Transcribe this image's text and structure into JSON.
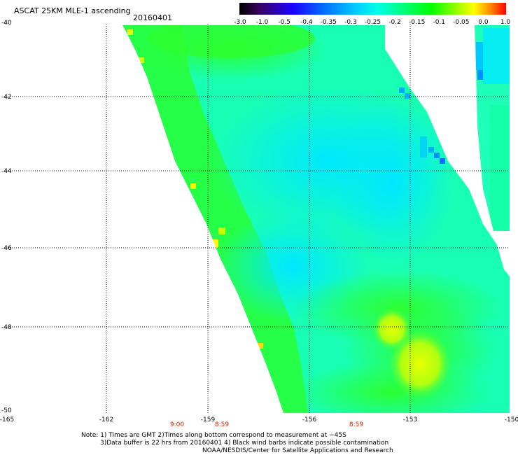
{
  "title": "ASCAT 25KM MLE-1 ascending",
  "date": "20160401",
  "colorbar": {
    "labels": [
      "-3.0",
      "-1.0",
      "-0.5",
      "-0.4",
      "-0.35",
      "-0.3",
      "-0.25",
      "-0.2",
      "-0.15",
      "-0.1",
      "-0.05",
      "0.0",
      "1.0"
    ]
  },
  "map": {
    "lat_labels": [
      "-40",
      "-42",
      "-44",
      "-46",
      "-48",
      "-50"
    ],
    "lon_labels": [
      "-165",
      "-162",
      "-159",
      "-156",
      "-153",
      "-150"
    ],
    "times": [
      "9:00",
      "8:59",
      "8:59"
    ]
  },
  "notes": {
    "line1": "Note: 1) Times are GMT 2)Times along bottom correspond to measurement at −45S",
    "line2": "3)Data buffer is 22 hrs from 20160401 4) Black wind barbs indicate possible contamination",
    "line3": "NOAA/NESDIS/Center for Satellite Applications and Research"
  }
}
